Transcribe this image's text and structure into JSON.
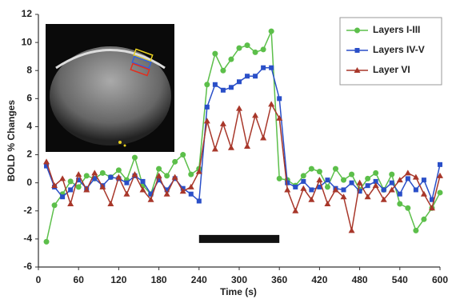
{
  "chart_data": {
    "type": "line",
    "x_label": "Time (s)",
    "y_label": "BOLD % Changes",
    "x": [
      12,
      24,
      36,
      48,
      60,
      72,
      84,
      96,
      108,
      120,
      132,
      144,
      156,
      168,
      180,
      192,
      204,
      216,
      228,
      240,
      252,
      264,
      276,
      288,
      300,
      312,
      324,
      336,
      348,
      360,
      372,
      384,
      396,
      408,
      420,
      432,
      444,
      456,
      468,
      480,
      492,
      504,
      516,
      528,
      540,
      552,
      564,
      576,
      588,
      600
    ],
    "series": [
      {
        "name": "Layers I-III",
        "color": "#5cbf4a",
        "marker": "circle",
        "values": [
          -4.2,
          -1.6,
          -0.8,
          0.1,
          -0.3,
          0.5,
          0.3,
          0.7,
          0.4,
          0.9,
          0.2,
          1.8,
          -0.2,
          -0.8,
          1.0,
          0.5,
          1.5,
          2.0,
          0.6,
          1.0,
          7.0,
          9.2,
          8.0,
          8.8,
          9.6,
          9.8,
          9.3,
          9.5,
          10.8,
          0.3,
          0.2,
          -0.2,
          0.5,
          1.0,
          0.8,
          -0.3,
          1.0,
          0.2,
          0.6,
          -0.5,
          0.3,
          0.7,
          -0.5,
          0.6,
          -1.5,
          -1.8,
          -3.4,
          -2.6,
          -1.8,
          -0.7
        ]
      },
      {
        "name": "Layers IV-V",
        "color": "#2a4fc8",
        "marker": "square",
        "values": [
          1.2,
          -0.3,
          -1.0,
          -0.5,
          0.2,
          -0.4,
          0.3,
          -0.2,
          0.4,
          0.3,
          0.0,
          0.5,
          0.1,
          -0.8,
          0.2,
          -0.5,
          0.3,
          -0.4,
          -0.8,
          -1.3,
          5.4,
          7.0,
          6.6,
          6.8,
          7.2,
          7.6,
          7.6,
          8.2,
          8.2,
          6.0,
          0.0,
          -0.3,
          0.1,
          -0.5,
          -0.3,
          0.2,
          -0.4,
          -0.5,
          0.0,
          -0.6,
          -0.2,
          0.1,
          -0.5,
          0.0,
          -0.8,
          0.3,
          -0.5,
          0.2,
          -1.2,
          1.3
        ]
      },
      {
        "name": "Layer VI",
        "color": "#a8372a",
        "marker": "triangle",
        "values": [
          1.5,
          -0.2,
          0.3,
          -1.5,
          0.6,
          -0.5,
          0.7,
          -0.3,
          -1.5,
          0.4,
          -0.8,
          0.6,
          -0.5,
          -1.2,
          0.5,
          -0.8,
          0.4,
          -0.6,
          -0.3,
          0.8,
          4.4,
          2.4,
          4.2,
          2.5,
          5.3,
          2.6,
          4.8,
          3.2,
          5.6,
          4.6,
          -0.5,
          -2.0,
          -0.4,
          -1.2,
          0.2,
          -1.5,
          -0.5,
          -1.0,
          -3.4,
          0.0,
          -1.0,
          -0.2,
          -1.2,
          -0.5,
          0.2,
          0.7,
          0.4,
          -0.8,
          -1.8,
          0.5
        ]
      }
    ],
    "stimulus": {
      "x": [
        240,
        360
      ],
      "y": -4
    },
    "xlim": [
      0,
      600
    ],
    "xticks": [
      0,
      60,
      120,
      180,
      240,
      300,
      360,
      420,
      480,
      540,
      600
    ],
    "ylim": [
      -6,
      12
    ],
    "yticks": [
      -6,
      -4,
      -2,
      0,
      2,
      4,
      6,
      8,
      10,
      12
    ],
    "legend": "upper right",
    "grid": false
  }
}
